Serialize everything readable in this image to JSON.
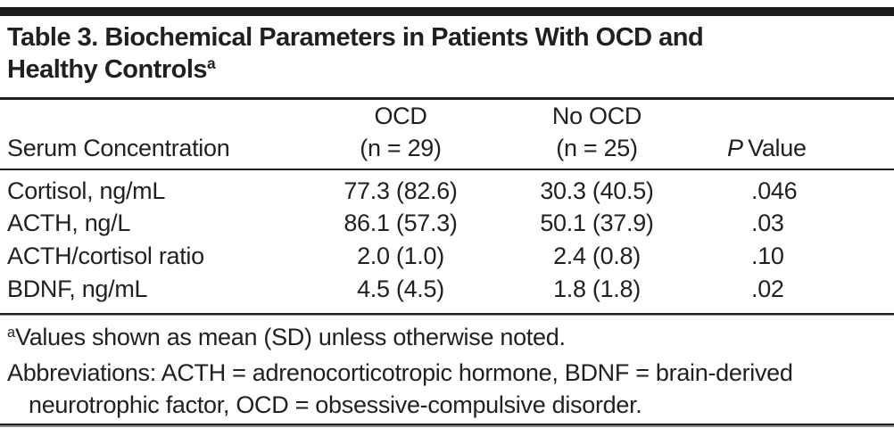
{
  "title": {
    "line1": "Table 3. Biochemical Parameters in Patients With OCD and",
    "line2": "Healthy Controls",
    "superscript": "a"
  },
  "table": {
    "header": {
      "row_label": "Serum Concentration",
      "group1_line1": "OCD",
      "group1_line2": "(n = 29)",
      "group2_line1": "No OCD",
      "group2_line2": "(n = 25)",
      "p_italic": "P",
      "p_rest": "Value"
    },
    "rows": [
      {
        "label": "Cortisol, ng/mL",
        "ocd": "77.3 (82.6)",
        "no_ocd": "30.3 (40.5)",
        "p_value": ".046"
      },
      {
        "label": "ACTH, ng/L",
        "ocd": "86.1 (57.3)",
        "no_ocd": "50.1 (37.9)",
        "p_value": ".03"
      },
      {
        "label": "ACTH/cortisol ratio",
        "ocd": "2.0 (1.0)",
        "no_ocd": "2.4 (0.8)",
        "p_value": ".10"
      },
      {
        "label": "BDNF, ng/mL",
        "ocd": "4.5 (4.5)",
        "no_ocd": "1.8 (1.8)",
        "p_value": ".02"
      }
    ]
  },
  "footnotes": {
    "note_a_marker": "a",
    "note_a_text": "Values shown as mean (SD) unless otherwise noted.",
    "abbrev_line1": "Abbreviations: ACTH = adrenocorticotropic hormone, BDNF = brain-derived",
    "abbrev_line2": "neurotrophic factor, OCD = obsessive-compulsive disorder."
  },
  "colors": {
    "text": "#231f20",
    "rule": "#231f20",
    "rule_shadow": "#8a8a8a",
    "background": "#ffffff"
  }
}
